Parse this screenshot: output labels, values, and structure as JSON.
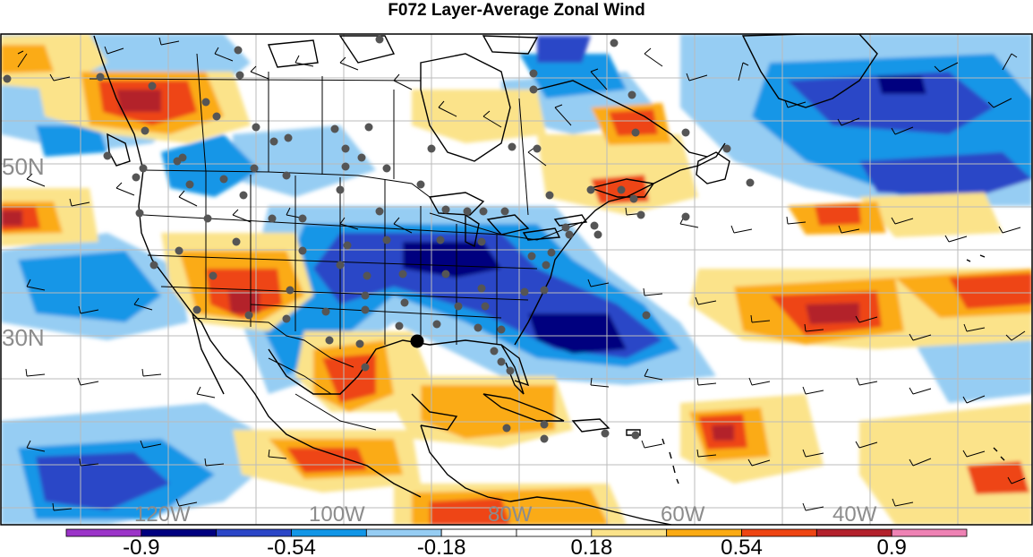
{
  "title": "F072 Layer-Average Zonal Wind",
  "map": {
    "lat_labels": [
      "50N",
      "30N"
    ],
    "lon_labels": [
      "120W",
      "100W",
      "80W",
      "60W",
      "40W"
    ]
  },
  "colorbar": {
    "colors": [
      "#9b34c8",
      "#00007f",
      "#2b46c7",
      "#1296e7",
      "#96cdf3",
      "#ffffff",
      "#ffffff",
      "#fbe38a",
      "#fbab14",
      "#ee4513",
      "#b3212c",
      "#ee82b4"
    ],
    "labels": [
      "-0.9",
      "-0.54",
      "-0.18",
      "0.18",
      "0.54",
      "0.9"
    ],
    "label_at_boundaries": [
      1,
      3,
      5,
      7,
      9,
      11
    ]
  }
}
